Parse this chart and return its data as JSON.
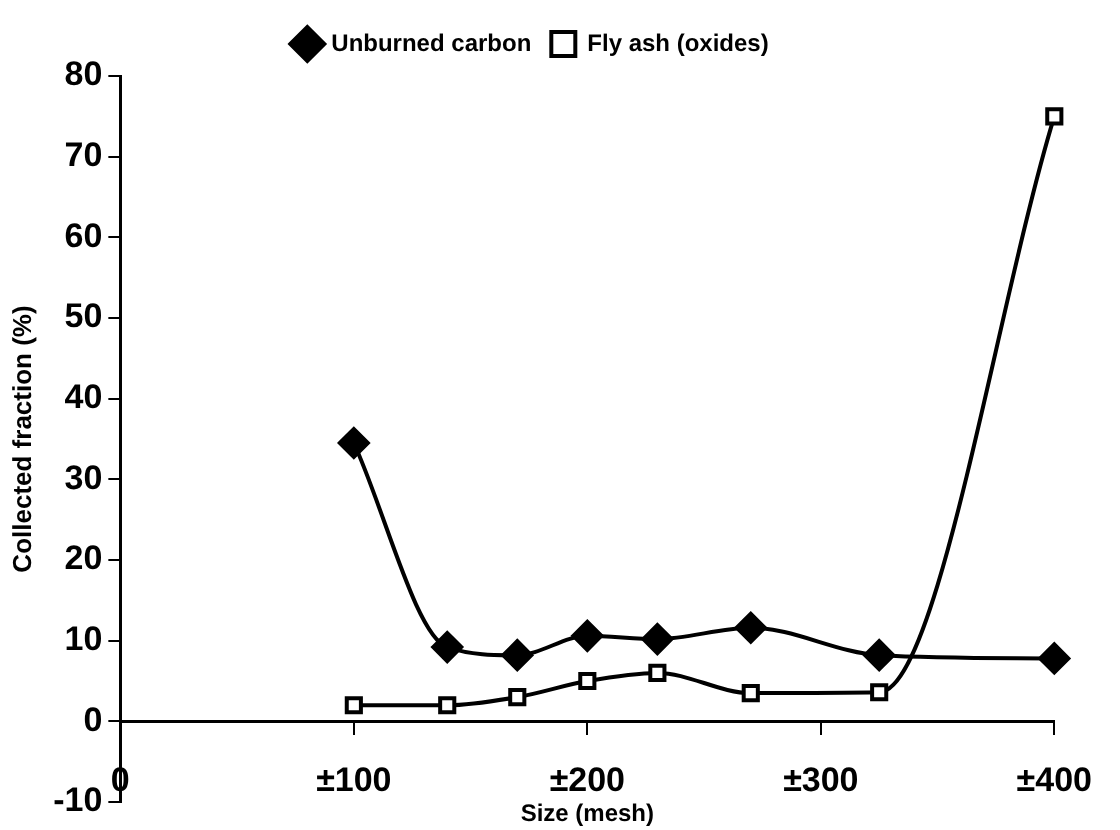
{
  "chart_data": {
    "type": "line",
    "xlabel": "Size (mesh)",
    "ylabel": "Collected fraction (%)",
    "x": [
      100,
      140,
      170,
      200,
      230,
      270,
      325,
      400
    ],
    "series": [
      {
        "name": "Unburned carbon",
        "color": "#000000",
        "marker": "diamond",
        "values": [
          34.5,
          9.2,
          8.2,
          10.6,
          10.2,
          11.6,
          8.2,
          7.8
        ]
      },
      {
        "name": "Fly ash (oxides)",
        "color": "#000000",
        "marker": "square",
        "values": [
          2,
          2,
          3,
          5,
          6,
          3.5,
          3.6,
          75
        ]
      }
    ],
    "xlim": [
      0,
      400
    ],
    "xticks": [
      0,
      {
        "value": 100,
        "label": "±100"
      },
      {
        "value": 200,
        "label": "±200"
      },
      {
        "value": 300,
        "label": "±300"
      },
      {
        "value": 400,
        "label": "±400"
      }
    ],
    "ylim": [
      -10,
      80
    ],
    "yticks": [
      -10,
      0,
      10,
      20,
      30,
      40,
      50,
      60,
      70,
      80
    ],
    "grid": false,
    "legend": "top",
    "line_style": "solid"
  }
}
